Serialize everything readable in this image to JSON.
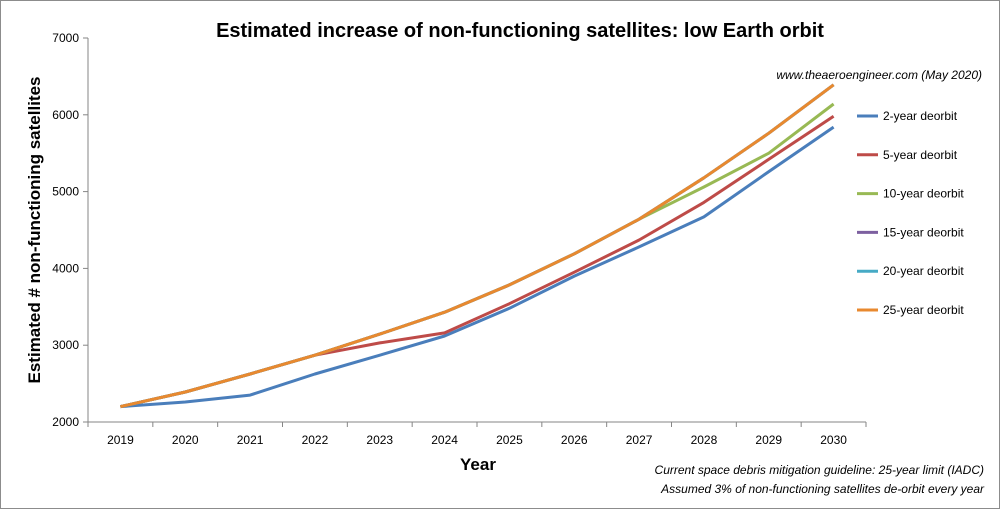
{
  "chart_data": {
    "type": "line",
    "title": "Estimated increase of non-functioning satellites: low Earth orbit",
    "xlabel": "Year",
    "ylabel": "Estimated # non-functioning satellites",
    "ylim": [
      2000,
      7000
    ],
    "yticks": [
      "2000",
      "3000",
      "4000",
      "5000",
      "6000",
      "7000"
    ],
    "x": [
      "2019",
      "2020",
      "2021",
      "2022",
      "2023",
      "2024",
      "2025",
      "2026",
      "2027",
      "2028",
      "2029",
      "2030"
    ],
    "grid": false,
    "legend_position": "right",
    "series": [
      {
        "name": "2-year deorbit",
        "color": "#4A7EBB",
        "values": [
          2200,
          2260,
          2350,
          2625,
          2870,
          3120,
          3480,
          3900,
          4280,
          4670,
          5260,
          5840
        ]
      },
      {
        "name": "5-year deorbit",
        "color": "#BE4B48",
        "values": [
          2200,
          2390,
          2625,
          2870,
          3030,
          3160,
          3540,
          3950,
          4370,
          4860,
          5420,
          5980
        ]
      },
      {
        "name": "10-year deorbit",
        "color": "#98B954",
        "values": [
          2200,
          2390,
          2625,
          2870,
          3145,
          3430,
          3785,
          4190,
          4640,
          5060,
          5500,
          6140
        ]
      },
      {
        "name": "15-year deorbit",
        "color": "#7D60A0",
        "values": [
          2200,
          2390,
          2625,
          2870,
          3145,
          3430,
          3785,
          4190,
          4640,
          5180,
          5760,
          6390
        ]
      },
      {
        "name": "20-year deorbit",
        "color": "#46AAC5",
        "values": [
          2200,
          2390,
          2625,
          2870,
          3145,
          3430,
          3785,
          4190,
          4640,
          5180,
          5760,
          6390
        ]
      },
      {
        "name": "25-year deorbit",
        "color": "#E8892F",
        "values": [
          2200,
          2390,
          2625,
          2870,
          3145,
          3430,
          3785,
          4190,
          4640,
          5180,
          5760,
          6390
        ]
      }
    ],
    "annotations": {
      "source": "www.theaeroengineer.com (May 2020)",
      "note1": "Current space debris mitigation guideline: 25-year limit (IADC)",
      "note2": "Assumed 3% of non-functioning satellites de-orbit every year"
    }
  }
}
